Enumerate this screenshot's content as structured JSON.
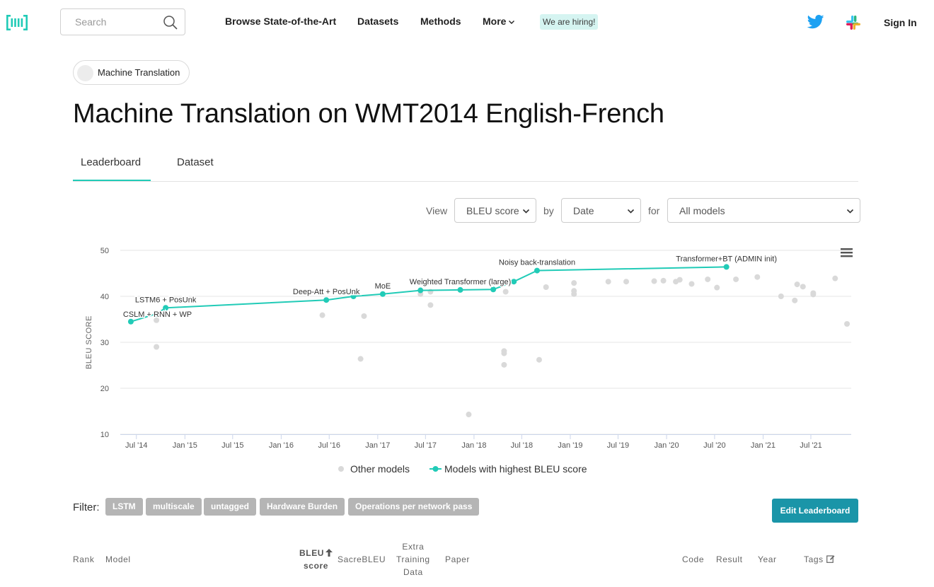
{
  "navbar": {
    "search_placeholder": "Search",
    "links": {
      "browse": "Browse State-of-the-Art",
      "datasets": "Datasets",
      "methods": "Methods",
      "more": "More"
    },
    "hiring": "We are hiring!",
    "signin": "Sign In"
  },
  "task_chip": "Machine Translation",
  "page_title": "Machine Translation on WMT2014 English-French",
  "tabs": {
    "leaderboard": "Leaderboard",
    "dataset": "Dataset"
  },
  "controls": {
    "view_label": "View",
    "view_value": "BLEU score",
    "by_label": "by",
    "by_value": "Date",
    "for_label": "for",
    "for_value": "All models"
  },
  "colors": {
    "accent": "#21cbb7",
    "other": "#d9d9d9",
    "button": "#1a95a8",
    "tag": "#b5b5b5"
  },
  "chart_data": {
    "type": "scatter",
    "ylabel": "BLEU SCORE",
    "ylim": [
      10,
      50
    ],
    "yticks": [
      "10",
      "20",
      "30",
      "40",
      "50"
    ],
    "xlim": [
      "2014-05-01",
      "2021-12-01"
    ],
    "xticks": [
      {
        "label": "Jul '14",
        "date": "2014-07-01"
      },
      {
        "label": "Jan '15",
        "date": "2015-01-01"
      },
      {
        "label": "Jul '15",
        "date": "2015-07-01"
      },
      {
        "label": "Jan '16",
        "date": "2016-01-01"
      },
      {
        "label": "Jul '16",
        "date": "2016-07-01"
      },
      {
        "label": "Jan '17",
        "date": "2017-01-01"
      },
      {
        "label": "Jul '17",
        "date": "2017-07-01"
      },
      {
        "label": "Jan '18",
        "date": "2018-01-01"
      },
      {
        "label": "Jul '18",
        "date": "2018-07-01"
      },
      {
        "label": "Jan '19",
        "date": "2019-01-01"
      },
      {
        "label": "Jul '19",
        "date": "2019-07-01"
      },
      {
        "label": "Jan '20",
        "date": "2020-01-01"
      },
      {
        "label": "Jul '20",
        "date": "2020-07-01"
      },
      {
        "label": "Jan '21",
        "date": "2021-01-01"
      },
      {
        "label": "Jul '21",
        "date": "2021-07-01"
      }
    ],
    "grid": true,
    "legend": "bottom",
    "legend_labels": {
      "other": "Other models",
      "best": "Models with highest BLEU score"
    },
    "best_series": [
      {
        "x": "2014-06-10",
        "y": 34.5,
        "label": "CSLM + RNN + WP"
      },
      {
        "x": "2014-09-15",
        "y": 36.2,
        "label": ""
      },
      {
        "x": "2014-10-20",
        "y": 37.5,
        "label": "LSTM6 + PosUnk"
      },
      {
        "x": "2016-06-20",
        "y": 39.2,
        "label": "Deep-Att + PosUnk"
      },
      {
        "x": "2016-10-01",
        "y": 40.0,
        "label": ""
      },
      {
        "x": "2017-01-20",
        "y": 40.5,
        "label": "MoE"
      },
      {
        "x": "2017-06-12",
        "y": 41.3,
        "label": ""
      },
      {
        "x": "2017-11-10",
        "y": 41.4,
        "label": "Weighted Transformer (large)"
      },
      {
        "x": "2018-03-15",
        "y": 41.5,
        "label": ""
      },
      {
        "x": "2018-06-01",
        "y": 43.2,
        "label": ""
      },
      {
        "x": "2018-08-28",
        "y": 45.6,
        "label": "Noisy back-translation"
      },
      {
        "x": "2020-08-15",
        "y": 46.4,
        "label": "Transformer+BT (ADMIN init)"
      }
    ],
    "other_points": [
      {
        "x": "2014-09-15",
        "y": 29.0
      },
      {
        "x": "2014-09-15",
        "y": 34.8
      },
      {
        "x": "2016-06-05",
        "y": 35.9
      },
      {
        "x": "2016-10-28",
        "y": 26.4
      },
      {
        "x": "2016-11-10",
        "y": 35.7
      },
      {
        "x": "2017-06-12",
        "y": 40.5
      },
      {
        "x": "2017-07-20",
        "y": 38.1
      },
      {
        "x": "2017-07-20",
        "y": 41.0
      },
      {
        "x": "2017-12-12",
        "y": 14.3
      },
      {
        "x": "2018-04-25",
        "y": 25.1
      },
      {
        "x": "2018-04-25",
        "y": 27.6
      },
      {
        "x": "2018-04-25",
        "y": 28.1
      },
      {
        "x": "2018-05-01",
        "y": 41.0
      },
      {
        "x": "2018-09-05",
        "y": 26.2
      },
      {
        "x": "2018-10-01",
        "y": 42.0
      },
      {
        "x": "2019-01-15",
        "y": 40.5
      },
      {
        "x": "2019-01-15",
        "y": 41.2
      },
      {
        "x": "2019-01-15",
        "y": 42.9
      },
      {
        "x": "2019-05-25",
        "y": 43.2
      },
      {
        "x": "2019-08-01",
        "y": 43.2
      },
      {
        "x": "2019-11-15",
        "y": 43.3
      },
      {
        "x": "2019-12-20",
        "y": 43.4
      },
      {
        "x": "2020-02-05",
        "y": 43.2
      },
      {
        "x": "2020-02-20",
        "y": 43.6
      },
      {
        "x": "2020-04-05",
        "y": 42.7
      },
      {
        "x": "2020-06-05",
        "y": 43.7
      },
      {
        "x": "2020-07-10",
        "y": 41.9
      },
      {
        "x": "2020-09-20",
        "y": 43.7
      },
      {
        "x": "2020-12-10",
        "y": 44.2
      },
      {
        "x": "2021-03-10",
        "y": 40.0
      },
      {
        "x": "2021-05-01",
        "y": 39.1
      },
      {
        "x": "2021-05-10",
        "y": 42.6
      },
      {
        "x": "2021-06-01",
        "y": 42.1
      },
      {
        "x": "2021-07-10",
        "y": 40.4
      },
      {
        "x": "2021-07-10",
        "y": 40.7
      },
      {
        "x": "2021-10-01",
        "y": 43.9
      },
      {
        "x": "2021-11-15",
        "y": 34.0
      }
    ]
  },
  "filter": {
    "label": "Filter:",
    "tags": [
      "LSTM",
      "multiscale",
      "untagged",
      "Hardware Burden",
      "Operations per network pass"
    ]
  },
  "edit_button": "Edit Leaderboard",
  "table_headers": {
    "rank": "Rank",
    "model": "Model",
    "bleu_line1": "BLEU",
    "bleu_line2": "score",
    "sacrebleu": "SacreBLEU",
    "extra_line1": "Extra",
    "extra_line2": "Training",
    "extra_line3": "Data",
    "paper": "Paper",
    "code": "Code",
    "result": "Result",
    "year": "Year",
    "tags": "Tags"
  }
}
